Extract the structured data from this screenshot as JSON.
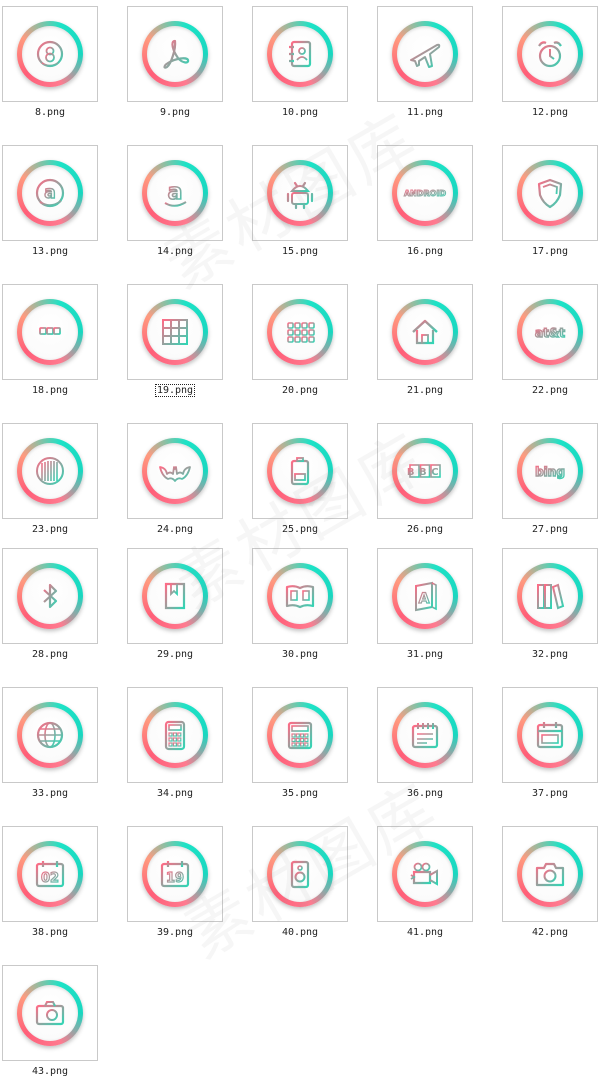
{
  "watermark": "素材图库",
  "colors": {
    "ring_teal": "#1de2c6",
    "ring_pink": "#ff5e78",
    "glyph_pink": "#ff6b86",
    "glyph_teal": "#2fd6b5",
    "label_text": "#222222",
    "thumb_border": "#c9c9c9"
  },
  "selected_file": "19.png",
  "files": [
    {
      "name": "8.png",
      "icon": "eight-ball-icon"
    },
    {
      "name": "9.png",
      "icon": "acrobat-icon"
    },
    {
      "name": "10.png",
      "icon": "address-book-icon"
    },
    {
      "name": "11.png",
      "icon": "airplane-icon"
    },
    {
      "name": "12.png",
      "icon": "alarm-clock-icon"
    },
    {
      "name": "13.png",
      "icon": "amazon-circle-icon"
    },
    {
      "name": "14.png",
      "icon": "amazon-a-icon"
    },
    {
      "name": "15.png",
      "icon": "android-robot-icon"
    },
    {
      "name": "16.png",
      "icon": "android-wordmark-icon",
      "text": "ANDROID"
    },
    {
      "name": "17.png",
      "icon": "shield-icon"
    },
    {
      "name": "18.png",
      "icon": "apps-three-dots-icon"
    },
    {
      "name": "19.png",
      "icon": "apps-grid-icon"
    },
    {
      "name": "20.png",
      "icon": "apps-dots-grid-icon"
    },
    {
      "name": "21.png",
      "icon": "home-icon"
    },
    {
      "name": "22.png",
      "icon": "att-wordmark-icon",
      "text": "at&t"
    },
    {
      "name": "23.png",
      "icon": "barcode-icon"
    },
    {
      "name": "24.png",
      "icon": "batman-icon"
    },
    {
      "name": "25.png",
      "icon": "battery-icon"
    },
    {
      "name": "26.png",
      "icon": "bbc-wordmark-icon",
      "text": "BBC"
    },
    {
      "name": "27.png",
      "icon": "bing-wordmark-icon",
      "text": "bing"
    },
    {
      "name": "28.png",
      "icon": "bluetooth-icon"
    },
    {
      "name": "29.png",
      "icon": "bookmark-book-icon"
    },
    {
      "name": "30.png",
      "icon": "open-book-icon"
    },
    {
      "name": "31.png",
      "icon": "address-book-a-icon",
      "text": "A"
    },
    {
      "name": "32.png",
      "icon": "books-shelf-icon"
    },
    {
      "name": "33.png",
      "icon": "globe-icon"
    },
    {
      "name": "34.png",
      "icon": "calculator-icon"
    },
    {
      "name": "35.png",
      "icon": "calculator-square-icon"
    },
    {
      "name": "36.png",
      "icon": "calendar-spiral-icon"
    },
    {
      "name": "37.png",
      "icon": "calendar-icon"
    },
    {
      "name": "38.png",
      "icon": "calendar-date-icon",
      "text": "02"
    },
    {
      "name": "39.png",
      "icon": "calendar-number-icon",
      "text": "19"
    },
    {
      "name": "40.png",
      "icon": "speaker-icon"
    },
    {
      "name": "41.png",
      "icon": "video-camera-icon"
    },
    {
      "name": "42.png",
      "icon": "camera-icon"
    },
    {
      "name": "43.png",
      "icon": "camera-alt-icon"
    }
  ]
}
